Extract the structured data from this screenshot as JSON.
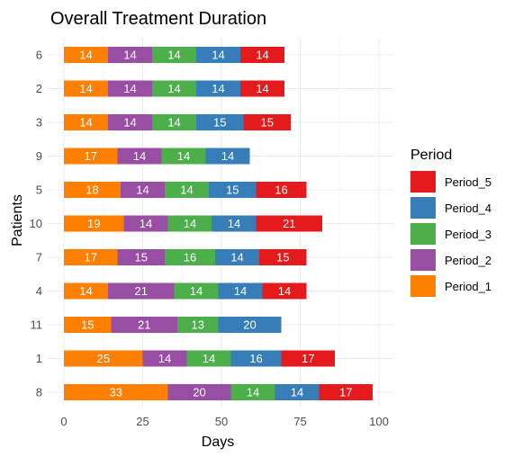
{
  "chart_data": {
    "type": "bar",
    "orientation": "horizontal",
    "stacked": true,
    "title": "Overall Treatment Duration",
    "xlabel": "Days",
    "ylabel": "Patients",
    "xlim": [
      0,
      100
    ],
    "x_ticks": [
      "0",
      "25",
      "50",
      "75",
      "100"
    ],
    "grid": true,
    "legend_title": "Period",
    "legend_position": "right",
    "legend_entries": [
      "Period_5",
      "Period_4",
      "Period_3",
      "Period_2",
      "Period_1"
    ],
    "categories": [
      "6",
      "2",
      "3",
      "9",
      "5",
      "10",
      "7",
      "4",
      "11",
      "1",
      "8"
    ],
    "series": [
      {
        "name": "Period_1",
        "color": "#ff7f00",
        "values": [
          14,
          14,
          14,
          17,
          18,
          19,
          17,
          14,
          15,
          25,
          33
        ]
      },
      {
        "name": "Period_2",
        "color": "#984ea3",
        "values": [
          14,
          14,
          14,
          14,
          14,
          14,
          15,
          21,
          21,
          14,
          20
        ]
      },
      {
        "name": "Period_3",
        "color": "#4daf4a",
        "values": [
          14,
          14,
          14,
          14,
          14,
          14,
          16,
          14,
          13,
          14,
          14
        ]
      },
      {
        "name": "Period_4",
        "color": "#377eb8",
        "values": [
          14,
          14,
          15,
          14,
          15,
          14,
          14,
          14,
          20,
          16,
          14
        ]
      },
      {
        "name": "Period_5",
        "color": "#e41a1c",
        "values": [
          14,
          14,
          15,
          null,
          16,
          21,
          15,
          14,
          null,
          17,
          17
        ]
      }
    ]
  }
}
